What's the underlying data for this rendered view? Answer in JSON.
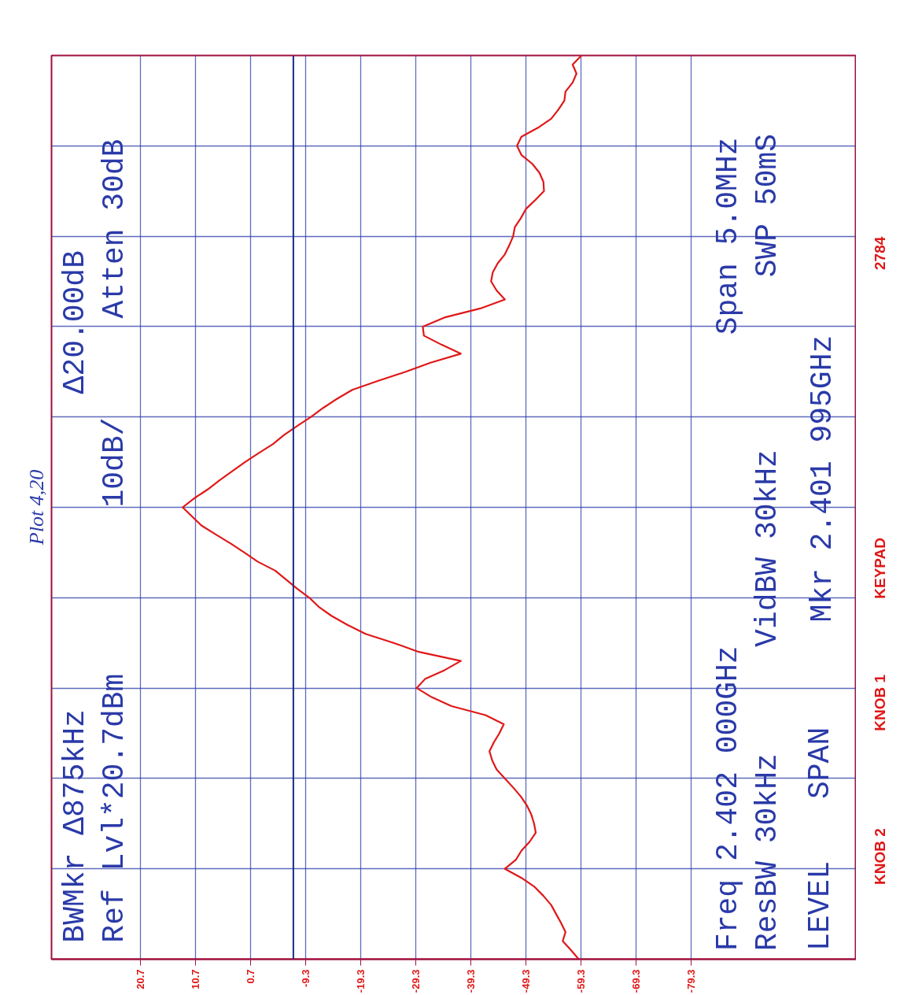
{
  "chart_data": {
    "type": "line",
    "orientation": "horizontal",
    "title": "Plot 4,20",
    "annotations": [
      "BWMkr Δ875kHz",
      "Ref Lvl*20.7dBm",
      "10dB/",
      "Δ20.00dB",
      "Atten 30dB",
      "Freq 2.402 000GHz",
      "ResBW 30kHz",
      "VidBW 30kHz",
      "Span 5.0MHz",
      "SWP 50mS",
      "Mkr 2.401 995GHz",
      "LEVEL",
      "SPAN",
      "KNOB 2",
      "KNOB 1",
      "KEYPAD",
      "2784"
    ],
    "categories": [
      null,
      null,
      null,
      null,
      null,
      null,
      null,
      null,
      null,
      null,
      null,
      null,
      null,
      null,
      null,
      null,
      null,
      null,
      null,
      null,
      null,
      null,
      null,
      null,
      null,
      null,
      null,
      null,
      null,
      null,
      null,
      null,
      null,
      null,
      null,
      null,
      null,
      null,
      null,
      null,
      null,
      null,
      null,
      null,
      null,
      null,
      null,
      null,
      null,
      null,
      null,
      null,
      null,
      null,
      null,
      null,
      null,
      null,
      null,
      null,
      null,
      null,
      null,
      null,
      null,
      null,
      null,
      null,
      null,
      null,
      null,
      null,
      null,
      null,
      null,
      null,
      null,
      null,
      null,
      null,
      null,
      null,
      null,
      null,
      null,
      null,
      null,
      null,
      null,
      null,
      null,
      null,
      null,
      null,
      null,
      null,
      null,
      null,
      null,
      null,
      null
    ],
    "series": [
      {
        "color": "#e01818",
        "values": [
          -59.4,
          -57.8,
          -58.5,
          -57.8,
          -56.5,
          -56.3,
          -55.2,
          -53.9,
          -51.5,
          -48.5,
          -47.7,
          -48.5,
          -50.5,
          -51.8,
          -52.5,
          -52.6,
          -51,
          -49.3,
          -48.4,
          -47.3,
          -47,
          -46.3,
          -45.5,
          -44.2,
          -43.3,
          -43,
          -44,
          -45.5,
          -41,
          -34.5,
          -30.6,
          -30.8,
          -34,
          -37.5,
          -32,
          -27.5,
          -22.5,
          -17.8,
          -15,
          -12.5,
          -10.3,
          -7.8,
          -5.4,
          -3.4,
          -0.8,
          1.7,
          4,
          6.3,
          8.4,
          10.9,
          13,
          11.3,
          9.6,
          7,
          4.3,
          1.8,
          -0.6,
          -3.8,
          -5.8,
          -7.8,
          -10,
          -11.7,
          -14,
          -16.9,
          -20.2,
          -25.3,
          -29.9,
          -37.5,
          -34.6,
          -31,
          -29.5,
          -32.2,
          -35.8,
          -42,
          -45.3,
          -44.5,
          -43.5,
          -42.7,
          -43.2,
          -44,
          -45.5,
          -47,
          -48.4,
          -49.5,
          -50.3,
          -50.8,
          -51.1,
          -50,
          -48.5,
          -47.5,
          -45.5,
          -48.5,
          -50.9,
          -52.5,
          -53.9,
          -54.8,
          -55.7,
          -56.5,
          -56,
          -57.5,
          -58.9
        ]
      }
    ],
    "xlim": [
      36.8,
      -109.3
    ],
    "xticks": [
      20.7,
      10.7,
      0.7,
      -9.3,
      -19.3,
      -29.3,
      -39.3,
      -49.3,
      -59.3,
      -69.3,
      -79.3
    ],
    "ref_lines": [
      {
        "axis": "x",
        "value": -7.1,
        "color": "#1c2a8c"
      }
    ],
    "grid": true,
    "tick_labels": "x"
  }
}
